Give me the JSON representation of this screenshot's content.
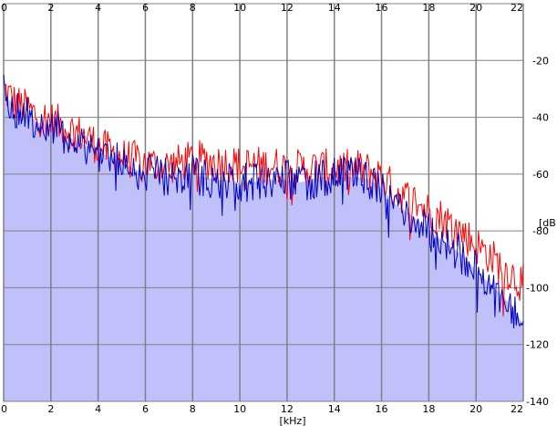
{
  "chart_data": {
    "type": "area",
    "xlabel": "[kHz]",
    "ylabel": "[dB]",
    "xlim": [
      0,
      22
    ],
    "ylim": [
      -140,
      0
    ],
    "x_ticks": [
      0,
      2,
      4,
      6,
      8,
      10,
      12,
      14,
      16,
      18,
      20,
      22
    ],
    "x_tick_labels": [
      "0",
      "2",
      "4",
      "6",
      "8",
      "10",
      "12",
      "14",
      "16",
      "18",
      "20",
      "22"
    ],
    "y_ticks": [
      -20,
      -40,
      -60,
      -80,
      -100,
      -120,
      -140
    ],
    "y_tick_labels": [
      "-20",
      "-40",
      "-60",
      "-80",
      "-100",
      "-120",
      "-140"
    ],
    "grid": true,
    "colors": {
      "fill": "#c0c0fa",
      "red_series": "#ff0000",
      "blue_series": "#0000c0",
      "grid": "#808080"
    },
    "series": [
      {
        "color": "red",
        "x": [
          0,
          0.5,
          1,
          1.5,
          2,
          2.5,
          3,
          3.5,
          4,
          4.5,
          5,
          5.5,
          6,
          6.5,
          7,
          7.5,
          8,
          8.5,
          9,
          9.5,
          10,
          10.5,
          11,
          11.5,
          12,
          12.5,
          13,
          13.5,
          14,
          14.5,
          15,
          15.5,
          16,
          16.5,
          17,
          17.5,
          18,
          18.5,
          19,
          19.5,
          20,
          20.5,
          21,
          21.5,
          22
        ],
        "y": [
          -30,
          -35,
          -37,
          -40,
          -41,
          -43,
          -45,
          -47,
          -50,
          -52,
          -54,
          -55,
          -56,
          -57,
          -57,
          -56,
          -55,
          -55,
          -56,
          -56,
          -57,
          -57,
          -57,
          -57,
          -58,
          -58,
          -58,
          -58,
          -58,
          -58,
          -58,
          -59,
          -61,
          -65,
          -68,
          -70,
          -73,
          -75,
          -78,
          -81,
          -85,
          -88,
          -92,
          -95,
          -99
        ]
      },
      {
        "color": "blue",
        "x": [
          0,
          0.5,
          1,
          1.5,
          2,
          2.5,
          3,
          3.5,
          4,
          4.5,
          5,
          5.5,
          6,
          6.5,
          7,
          7.5,
          8,
          8.5,
          9,
          9.5,
          10,
          10.5,
          11,
          11.5,
          12,
          12.5,
          13,
          13.5,
          14,
          14.5,
          15,
          15.5,
          16,
          16.5,
          17,
          17.5,
          18,
          18.5,
          19,
          19.5,
          20,
          20.5,
          21,
          21.5,
          22
        ],
        "y": [
          -31,
          -37,
          -39,
          -42,
          -43,
          -46,
          -48,
          -50,
          -52,
          -54,
          -56,
          -58,
          -60,
          -60,
          -61,
          -60,
          -60,
          -61,
          -62,
          -62,
          -63,
          -63,
          -62,
          -62,
          -62,
          -63,
          -62,
          -61,
          -61,
          -61,
          -61,
          -62,
          -65,
          -70,
          -73,
          -76,
          -80,
          -83,
          -86,
          -89,
          -94,
          -98,
          -102,
          -106,
          -113
        ]
      }
    ]
  }
}
